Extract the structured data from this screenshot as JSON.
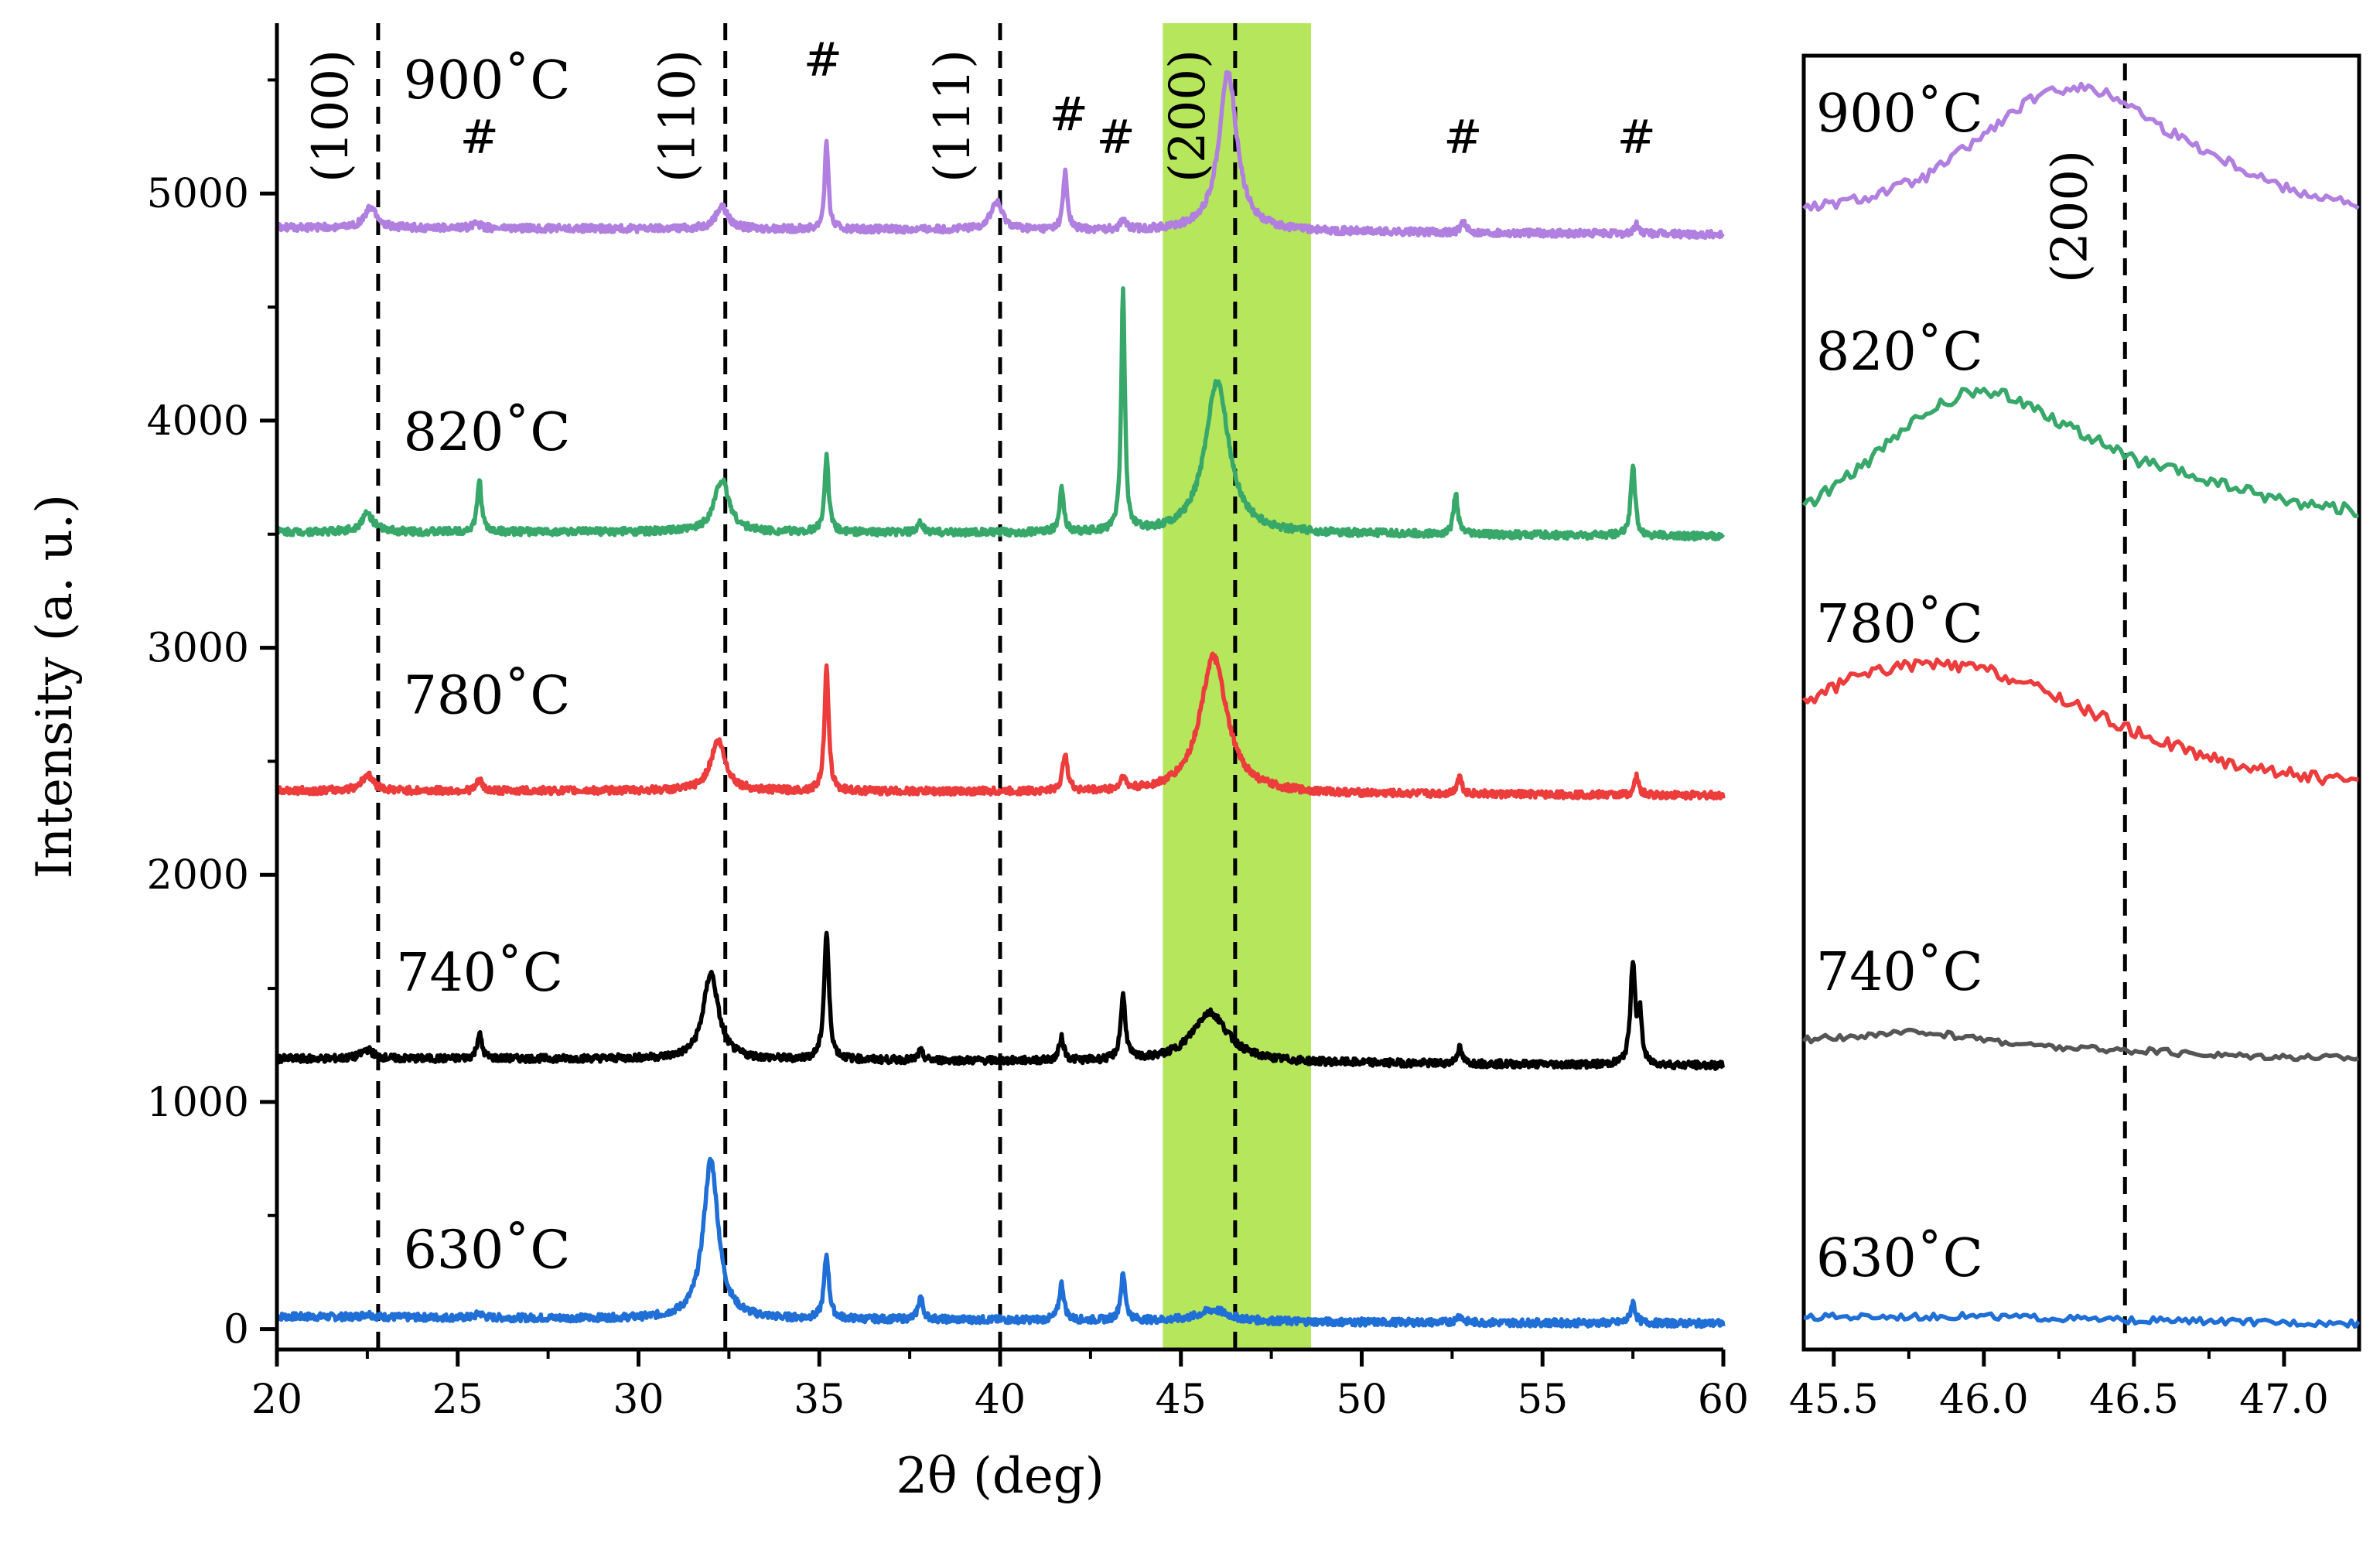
{
  "chart_data": [
    {
      "type": "line",
      "panel": "main",
      "xlabel": "2θ (deg)",
      "ylabel": "Intensity (a. u.)",
      "xlim": [
        20,
        60
      ],
      "ylim": [
        -90,
        5750
      ],
      "xticks": [
        20,
        25,
        30,
        35,
        40,
        45,
        50,
        55,
        60
      ],
      "yticks": [
        0,
        1000,
        2000,
        3000,
        4000,
        5000
      ],
      "xtick_labels": [
        "20",
        "25",
        "30",
        "35",
        "40",
        "45",
        "50",
        "55",
        "60"
      ],
      "ytick_labels": [
        "0",
        "1000",
        "2000",
        "3000",
        "4000",
        "5000"
      ],
      "highlight_band": {
        "x_range": [
          44.5,
          48.6
        ],
        "color": "#b5e65c"
      },
      "reference_lines": [
        {
          "x": 22.8,
          "label": "(100)"
        },
        {
          "x": 32.4,
          "label": "(110)"
        },
        {
          "x": 40.0,
          "label": "(111)"
        },
        {
          "x": 46.5,
          "label": "(200)"
        }
      ],
      "hash_marks": [
        {
          "x": 25.6,
          "y": 5180,
          "label": "#"
        },
        {
          "x": 35.1,
          "y": 5520,
          "label": "#"
        },
        {
          "x": 41.9,
          "y": 5280,
          "label": "#"
        },
        {
          "x": 43.2,
          "y": 5180,
          "label": "#"
        },
        {
          "x": 52.8,
          "y": 5180,
          "label": "#"
        },
        {
          "x": 57.6,
          "y": 5180,
          "label": "#"
        }
      ],
      "series": [
        {
          "name": "630˚C",
          "color": "#1f6fd6",
          "baseline": [
            [
              20,
              55
            ],
            [
              30,
              45
            ],
            [
              40,
              40
            ],
            [
              50,
              30
            ],
            [
              60,
              25
            ]
          ],
          "peaks": [
            [
              22.5,
              15,
              0.15
            ],
            [
              25.6,
              20,
              0.1
            ],
            [
              32.0,
              700,
              0.25
            ],
            [
              35.2,
              280,
              0.08
            ],
            [
              37.8,
              100,
              0.08
            ],
            [
              41.7,
              160,
              0.08
            ],
            [
              43.4,
              200,
              0.08
            ],
            [
              45.9,
              50,
              0.5
            ],
            [
              52.7,
              30,
              0.1
            ],
            [
              57.5,
              90,
              0.08
            ]
          ],
          "label_pos": {
            "x": 23.5,
            "y": 270
          }
        },
        {
          "name": "740˚C",
          "color": "#000000",
          "baseline": [
            [
              20,
              1190
            ],
            [
              30,
              1190
            ],
            [
              40,
              1180
            ],
            [
              50,
              1170
            ],
            [
              60,
              1160
            ]
          ],
          "peaks": [
            [
              22.5,
              40,
              0.2
            ],
            [
              25.6,
              110,
              0.08
            ],
            [
              32.0,
              380,
              0.25
            ],
            [
              35.2,
              560,
              0.08
            ],
            [
              37.8,
              40,
              0.08
            ],
            [
              41.7,
              100,
              0.08
            ],
            [
              43.4,
              280,
              0.08
            ],
            [
              45.8,
              220,
              0.6
            ],
            [
              52.7,
              70,
              0.08
            ],
            [
              57.5,
              450,
              0.08
            ],
            [
              57.7,
              200,
              0.06
            ]
          ],
          "label_pos": {
            "x": 23.3,
            "y": 1490
          }
        },
        {
          "name": "780˚C",
          "color": "#ec3c3c",
          "baseline": [
            [
              20,
              2370
            ],
            [
              30,
              2370
            ],
            [
              40,
              2365
            ],
            [
              50,
              2355
            ],
            [
              60,
              2350
            ]
          ],
          "peaks": [
            [
              22.5,
              70,
              0.2
            ],
            [
              25.6,
              50,
              0.08
            ],
            [
              32.2,
              220,
              0.25
            ],
            [
              35.2,
              540,
              0.07
            ],
            [
              41.8,
              170,
              0.08
            ],
            [
              43.4,
              60,
              0.08
            ],
            [
              45.9,
              600,
              0.45
            ],
            [
              52.7,
              80,
              0.08
            ],
            [
              57.6,
              80,
              0.07
            ]
          ],
          "label_pos": {
            "x": 23.5,
            "y": 2710
          }
        },
        {
          "name": "820˚C",
          "color": "#37a86a",
          "baseline": [
            [
              20,
              3510
            ],
            [
              30,
              3510
            ],
            [
              40,
              3505
            ],
            [
              50,
              3500
            ],
            [
              60,
              3490
            ]
          ],
          "peaks": [
            [
              22.5,
              80,
              0.2
            ],
            [
              25.6,
              230,
              0.07
            ],
            [
              32.3,
              230,
              0.25
            ],
            [
              35.2,
              330,
              0.07
            ],
            [
              37.8,
              40,
              0.08
            ],
            [
              41.7,
              200,
              0.07
            ],
            [
              43.4,
              1060,
              0.06
            ],
            [
              46.0,
              670,
              0.4
            ],
            [
              52.6,
              180,
              0.07
            ],
            [
              57.5,
              320,
              0.07
            ]
          ],
          "label_pos": {
            "x": 23.5,
            "y": 3870
          }
        },
        {
          "name": "900˚C",
          "color": "#b07fdf",
          "baseline": [
            [
              20,
              4850
            ],
            [
              30,
              4845
            ],
            [
              40,
              4840
            ],
            [
              50,
              4830
            ],
            [
              60,
              4820
            ]
          ],
          "peaks": [
            [
              22.6,
              90,
              0.2
            ],
            [
              25.5,
              30,
              0.1
            ],
            [
              32.3,
              100,
              0.2
            ],
            [
              35.2,
              390,
              0.06
            ],
            [
              39.9,
              120,
              0.2
            ],
            [
              41.8,
              250,
              0.07
            ],
            [
              43.4,
              50,
              0.08
            ],
            [
              46.3,
              700,
              0.3
            ],
            [
              52.8,
              50,
              0.08
            ],
            [
              57.6,
              40,
              0.08
            ]
          ],
          "label_pos": {
            "x": 23.5,
            "y": 5420
          }
        }
      ]
    },
    {
      "type": "line",
      "panel": "inset",
      "xlabel": "",
      "ylabel": "",
      "xlim": [
        45.4,
        47.25
      ],
      "xticks": [
        45.5,
        46.0,
        46.5,
        47.0
      ],
      "xtick_labels": [
        "45.5",
        "46.0",
        "46.5",
        "47.0"
      ],
      "reference_lines": [
        {
          "x": 46.47,
          "label": "(200)"
        }
      ],
      "series": [
        {
          "name": "900˚C",
          "color": "#b07fdf",
          "points": [
            [
              45.4,
              0.2
            ],
            [
              45.6,
              0.27
            ],
            [
              45.8,
              0.4
            ],
            [
              46.0,
              0.68
            ],
            [
              46.15,
              0.9
            ],
            [
              46.3,
              1.0
            ],
            [
              46.45,
              0.92
            ],
            [
              46.6,
              0.72
            ],
            [
              46.8,
              0.52
            ],
            [
              47.0,
              0.34
            ],
            [
              47.25,
              0.22
            ]
          ]
        },
        {
          "name": "820˚C",
          "color": "#37a86a",
          "points": [
            [
              45.4,
              0.2
            ],
            [
              45.6,
              0.45
            ],
            [
              45.8,
              0.75
            ],
            [
              45.95,
              0.88
            ],
            [
              46.1,
              0.85
            ],
            [
              46.3,
              0.66
            ],
            [
              46.5,
              0.48
            ],
            [
              46.8,
              0.33
            ],
            [
              47.0,
              0.24
            ],
            [
              47.25,
              0.18
            ]
          ]
        },
        {
          "name": "780˚C",
          "color": "#ec3c3c",
          "points": [
            [
              45.4,
              0.55
            ],
            [
              45.6,
              0.73
            ],
            [
              45.8,
              0.78
            ],
            [
              46.0,
              0.75
            ],
            [
              46.2,
              0.62
            ],
            [
              46.5,
              0.38
            ],
            [
              46.8,
              0.2
            ],
            [
              47.0,
              0.14
            ],
            [
              47.25,
              0.08
            ]
          ]
        },
        {
          "name": "740˚C",
          "color": "#555555",
          "points": [
            [
              45.4,
              0.3
            ],
            [
              45.8,
              0.38
            ],
            [
              46.0,
              0.3
            ],
            [
              46.2,
              0.22
            ],
            [
              46.5,
              0.18
            ],
            [
              46.8,
              0.13
            ],
            [
              47.25,
              0.1
            ]
          ]
        },
        {
          "name": "630˚C",
          "color": "#1f6fd6",
          "points": [
            [
              45.4,
              0.1
            ],
            [
              46.0,
              0.11
            ],
            [
              46.4,
              0.07
            ],
            [
              46.8,
              0.05
            ],
            [
              47.25,
              0.03
            ]
          ]
        }
      ],
      "series_labels": [
        "900˚C",
        "820˚C",
        "780˚C",
        "740˚C",
        "630˚C"
      ]
    }
  ]
}
